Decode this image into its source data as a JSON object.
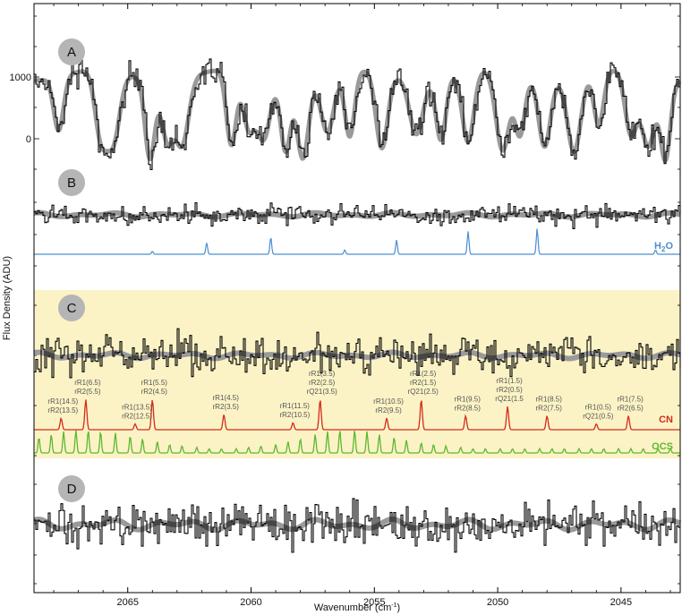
{
  "chart_data": {
    "type": "line",
    "xlabel": "Wavenumber (cm",
    "xlabel_sup": "-1",
    "xlabel_end": ")",
    "ylabel": "Flux Density (ADU)",
    "xlim": [
      2068.8,
      2042.6
    ],
    "x_ticks": [
      "2065",
      "2060",
      "2055",
      "2050",
      "2045"
    ],
    "x_tick_values": [
      2065,
      2060,
      2055,
      2050,
      2045
    ],
    "grid": false,
    "panels": [
      {
        "label": "A",
        "y_ticks": [
          "1000",
          "0"
        ],
        "y_tick_values": [
          1000,
          0
        ],
        "description_series": [
          "observed",
          "model"
        ],
        "absorption_lines": [
          2067.8,
          2066.1,
          2065.6,
          2064.1,
          2063.4,
          2062.8,
          2060.8,
          2060.1,
          2059.5,
          2058.6,
          2057.9,
          2056.9,
          2056.0,
          2054.7,
          2053.3,
          2052.3,
          2051.2,
          2049.8,
          2049.1,
          2048.1,
          2046.9,
          2045.9,
          2044.6,
          2043.9,
          2043.2
        ]
      },
      {
        "label": "B",
        "species": [
          {
            "name": "H",
            "sub": "2",
            "tail": "O",
            "color": "#4a8fd0",
            "lines": [
              {
                "x": 2064.0,
                "strength": 0.2
              },
              {
                "x": 2061.8,
                "strength": 0.8
              },
              {
                "x": 2059.2,
                "strength": 1.2
              },
              {
                "x": 2056.2,
                "strength": 0.3
              },
              {
                "x": 2054.1,
                "strength": 1.0
              },
              {
                "x": 2051.2,
                "strength": 1.6
              },
              {
                "x": 2048.4,
                "strength": 1.8
              },
              {
                "x": 2043.6,
                "strength": 0.3
              }
            ]
          }
        ]
      },
      {
        "label": "C",
        "highlight_color": "#fbf3c5",
        "species": [
          {
            "name": "CN",
            "color": "#d62a1f",
            "lines": [
              {
                "x": 2067.7,
                "strength": 1.0,
                "labels": [
                  "rR1(14.5)",
                  "rR2(13.5)"
                ]
              },
              {
                "x": 2066.7,
                "strength": 2.6,
                "labels": [
                  "rR1(6.5)",
                  "rR2(5.5)"
                ]
              },
              {
                "x": 2064.7,
                "strength": 0.5,
                "labels": [
                  "rR1(13.5)",
                  "rR2(12.5)"
                ]
              },
              {
                "x": 2064.0,
                "strength": 2.6,
                "labels": [
                  "rR1(5.5)",
                  "rR2(4.5)"
                ]
              },
              {
                "x": 2061.1,
                "strength": 1.3,
                "labels": [
                  "rR1(4.5)",
                  "rR2(3.5)"
                ]
              },
              {
                "x": 2058.3,
                "strength": 0.6,
                "labels": [
                  "rR1(11.5)",
                  "rR2(10.5)"
                ]
              },
              {
                "x": 2057.2,
                "strength": 2.6,
                "labels": [
                  "rR1(3.5)",
                  "rR2(2.5)",
                  "rQ21(3.5)"
                ]
              },
              {
                "x": 2054.5,
                "strength": 1.0,
                "labels": [
                  "rR1(10.5)",
                  "rR2(9.5)"
                ]
              },
              {
                "x": 2053.1,
                "strength": 2.6,
                "labels": [
                  "rR1(2.5)",
                  "rR2(1.5)",
                  "rQ21(2.5)"
                ]
              },
              {
                "x": 2051.3,
                "strength": 1.2,
                "labels": [
                  "rR1(9.5)",
                  "rR2(8.5)"
                ]
              },
              {
                "x": 2049.6,
                "strength": 2.0,
                "labels": [
                  "rR1(1.5)",
                  "rR2(0.5)",
                  "rQ21(1.5"
                ]
              },
              {
                "x": 2048.0,
                "strength": 1.2,
                "labels": [
                  "rR1(8.5)",
                  "rR2(7.5)"
                ]
              },
              {
                "x": 2046.0,
                "strength": 0.5,
                "labels": [
                  "rR1(0.5)",
                  "rQ21(0.5)"
                ]
              },
              {
                "x": 2044.7,
                "strength": 1.2,
                "labels": [
                  "rR1(7.5)",
                  "rR2(6.5)"
                ]
              }
            ]
          },
          {
            "name": "OCS",
            "color": "#5cb832",
            "line_positions": [
              2068.6,
              2068.1,
              2067.6,
              2067.1,
              2066.6,
              2066.1,
              2065.5,
              2064.9,
              2064.4,
              2063.8,
              2063.3,
              2062.8,
              2062.2,
              2061.7,
              2061.2,
              2060.6,
              2060.1,
              2059.6,
              2059.0,
              2058.5,
              2058.0,
              2057.4,
              2056.9,
              2056.4,
              2055.8,
              2055.3,
              2054.8,
              2054.2,
              2053.7,
              2053.1,
              2052.6,
              2052.1,
              2051.5,
              2051.0,
              2050.5,
              2049.9,
              2049.4,
              2048.9,
              2048.3,
              2047.8,
              2047.3,
              2046.7,
              2046.2,
              2045.7,
              2045.1,
              2044.6,
              2044.1,
              2043.5,
              2043.0
            ],
            "line_strengths": [
              1.1,
              1.3,
              1.5,
              1.6,
              1.6,
              1.5,
              1.4,
              1.2,
              1.0,
              0.8,
              0.6,
              0.5,
              0.4,
              0.3,
              0.3,
              0.3,
              0.4,
              0.5,
              0.6,
              0.8,
              1.0,
              1.3,
              1.5,
              1.6,
              1.6,
              1.5,
              1.3,
              1.1,
              0.9,
              0.7,
              0.6,
              0.5,
              0.4,
              0.3,
              0.3,
              0.3,
              0.3,
              0.3,
              0.3,
              0.3,
              0.3,
              0.3,
              0.3,
              0.3,
              0.3,
              0.3,
              0.3,
              0.3,
              0.3
            ]
          }
        ]
      },
      {
        "label": "D"
      }
    ]
  },
  "colors": {
    "observed": "#000000",
    "model": "#9a9a9a",
    "badge": "#b5b5b5"
  }
}
